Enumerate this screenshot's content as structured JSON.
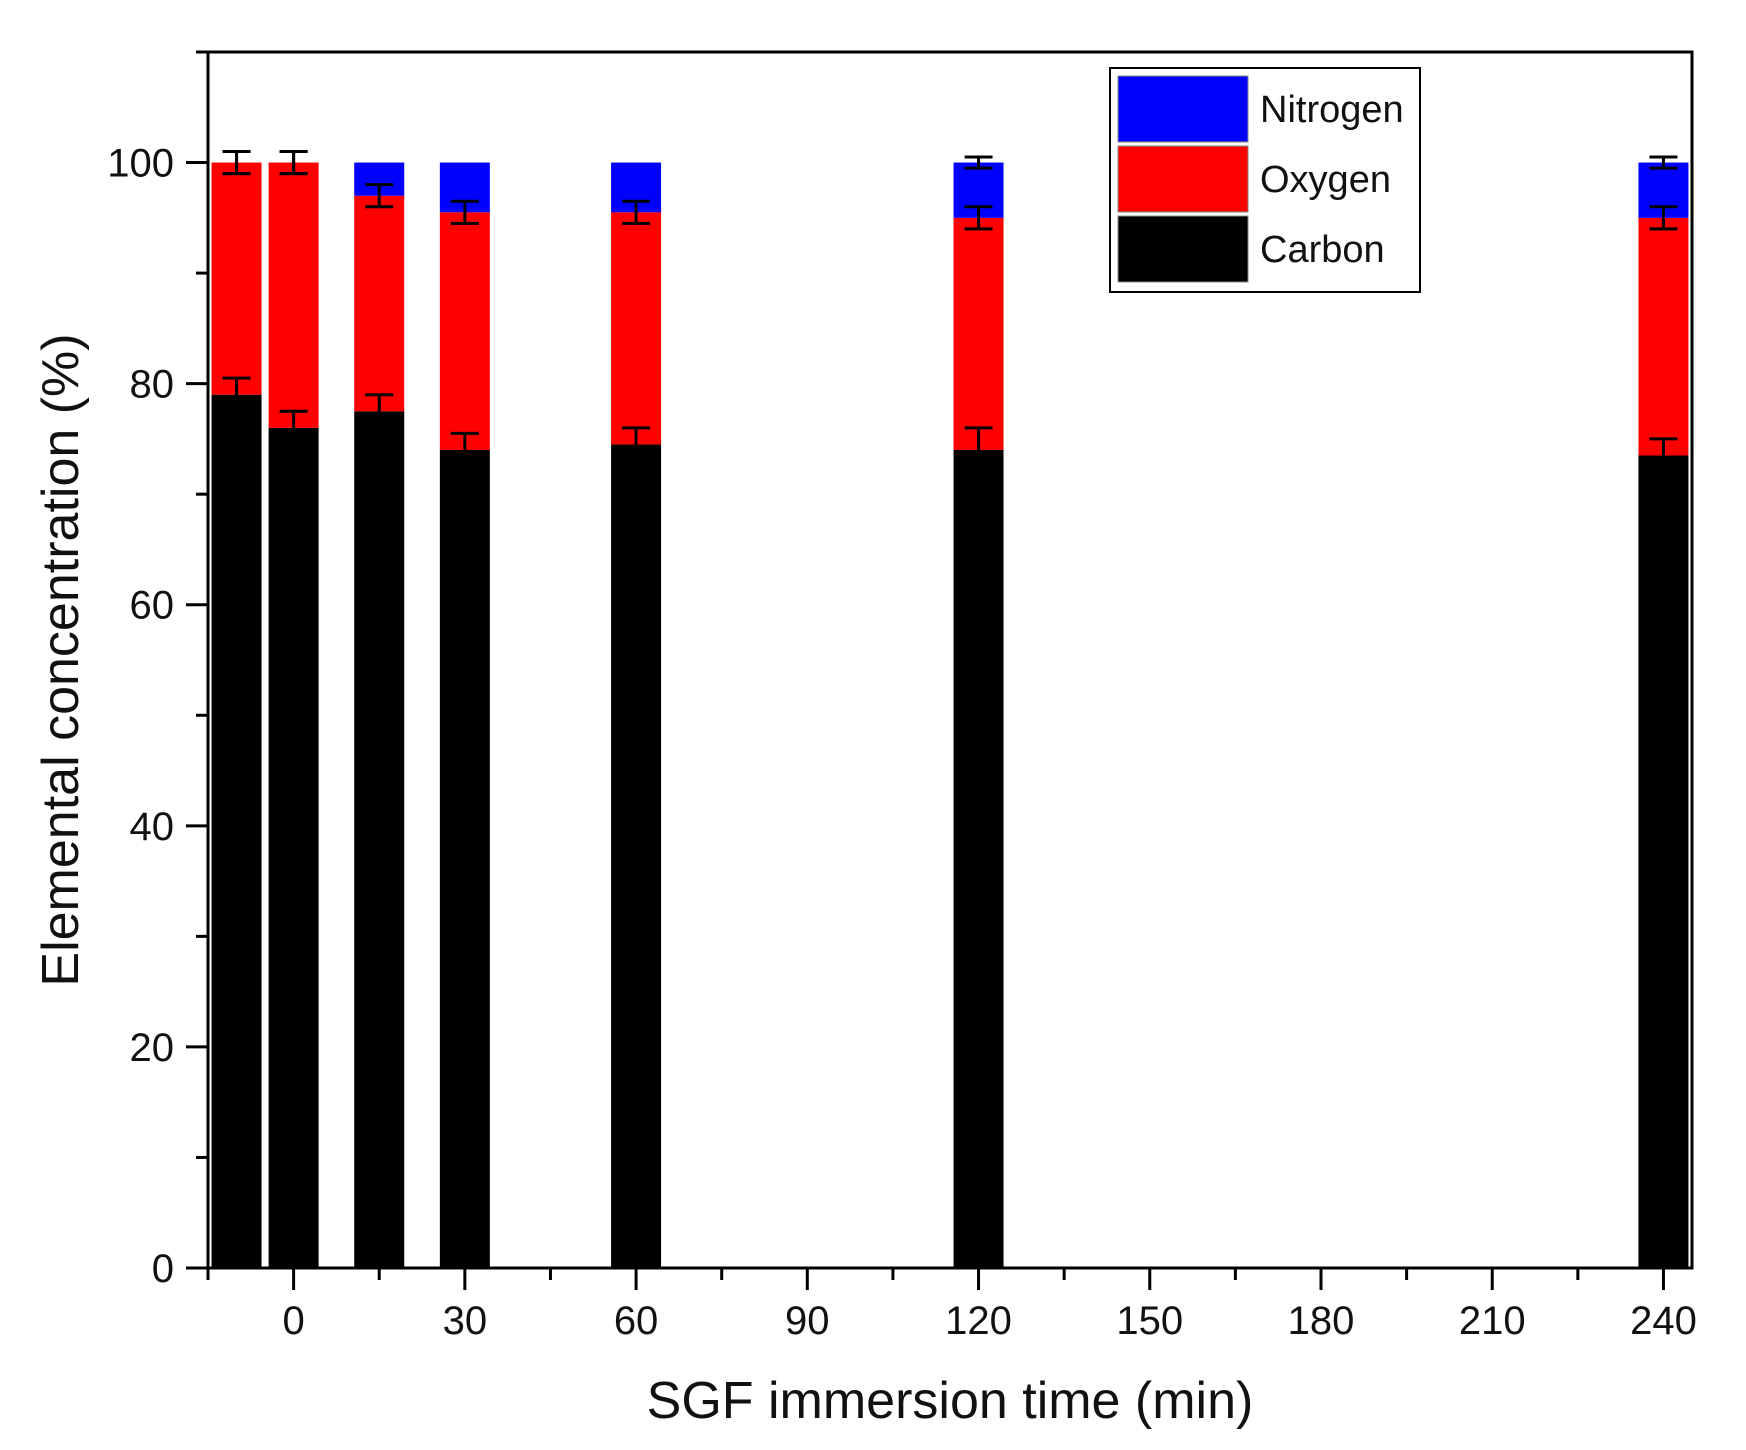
{
  "chart_data": {
    "type": "bar",
    "stacked": true,
    "title": "",
    "xlabel": "SGF immersion time (min)",
    "ylabel": "Elemental concentration (%)",
    "xlim": [
      -15,
      245
    ],
    "ylim": [
      0,
      110
    ],
    "xticks": [
      0,
      30,
      60,
      90,
      120,
      150,
      180,
      210,
      240
    ],
    "yticks": [
      0,
      20,
      40,
      60,
      80,
      100
    ],
    "x": [
      -10,
      0,
      15,
      30,
      60,
      120,
      240
    ],
    "series": [
      {
        "name": "Carbon",
        "color": "#000000",
        "values": [
          79.0,
          76.0,
          77.5,
          74.0,
          74.5,
          74.0,
          73.5
        ],
        "errors": [
          1.5,
          1.5,
          1.5,
          1.5,
          1.5,
          2.0,
          1.5
        ]
      },
      {
        "name": "Oxygen",
        "color": "#ff0000",
        "values": [
          21.0,
          24.0,
          19.5,
          21.5,
          21.0,
          21.0,
          21.5
        ],
        "errors": [
          1.0,
          1.0,
          1.0,
          1.0,
          1.0,
          1.0,
          1.0
        ]
      },
      {
        "name": "Nitrogen",
        "color": "#0000ff",
        "values": [
          0.0,
          0.0,
          3.0,
          4.5,
          4.5,
          5.0,
          5.0
        ],
        "errors": [
          0.0,
          0.0,
          0.5,
          0.5,
          0.5,
          0.5,
          0.5
        ]
      }
    ],
    "top_errors": [
      1.0,
      1.0,
      0.0,
      0.0,
      0.0,
      0.5,
      0.5
    ],
    "legend": {
      "placement": "top-right",
      "order": [
        "Nitrogen",
        "Oxygen",
        "Carbon"
      ]
    }
  }
}
